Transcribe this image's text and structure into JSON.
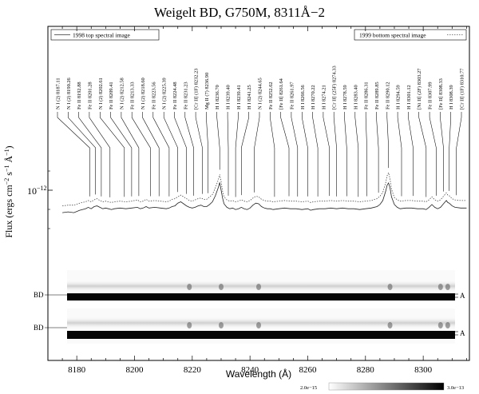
{
  "chart_data": {
    "type": "line",
    "title": "Weigelt BD, G750M, 8311Å−2",
    "xlabel": "Wavelength (Å)",
    "ylabel": "Flux (ergs cm",
    "ylabel_sup1": "−2",
    "ylabel_mid": " s",
    "ylabel_sup2": "−1",
    "ylabel_unit": " Å",
    "ylabel_sup3": "−1",
    "ylabel_close": ")",
    "xlim": [
      8170,
      8316
    ],
    "xticks": [
      "8180",
      "8200",
      "8220",
      "8240",
      "8260",
      "8280",
      "8300"
    ],
    "yscale": "log",
    "ytick_label_base": "10",
    "ytick_label_exp": "−12",
    "legend": [
      {
        "name": "1998 top spectral image",
        "style": "solid",
        "position": "top-left"
      },
      {
        "name": "1999 bottom spectral image",
        "style": "dotted",
        "position": "top-right"
      }
    ],
    "series": [
      {
        "name": "1998 top spectral image",
        "style": "solid",
        "x": [
          8175,
          8177,
          8179,
          8181,
          8183,
          8184,
          8185,
          8186,
          8187,
          8188,
          8189,
          8190,
          8191,
          8192,
          8193,
          8195,
          8197,
          8199,
          8201,
          8202,
          8203,
          8204,
          8205,
          8207,
          8209,
          8211,
          8212,
          8213,
          8214,
          8215,
          8216,
          8217,
          8218,
          8219,
          8220,
          8221,
          8222,
          8223,
          8224,
          8225,
          8226,
          8227,
          8228,
          8229,
          8229.5,
          8230,
          8230.5,
          8231,
          8232,
          8233,
          8234,
          8235,
          8236,
          8237,
          8238,
          8239,
          8240,
          8241,
          8242,
          8243,
          8244,
          8245,
          8246,
          8247,
          8248,
          8250,
          8252,
          8254,
          8256,
          8258,
          8260,
          8261,
          8262,
          8264,
          8266,
          8268,
          8270,
          8272,
          8274,
          8276,
          8278,
          8280,
          8282,
          8284,
          8285,
          8286,
          8287,
          8287.5,
          8288,
          8288.5,
          8289,
          8290,
          8291,
          8292,
          8294,
          8296,
          8298,
          8300,
          8301,
          8302,
          8303,
          8304,
          8305,
          8306,
          8307,
          8308,
          8308.5,
          8309,
          8310,
          8311,
          8313,
          8315
        ],
        "y": [
          0.65,
          0.66,
          0.65,
          0.68,
          0.7,
          0.72,
          0.7,
          0.73,
          0.74,
          0.72,
          0.7,
          0.71,
          0.7,
          0.69,
          0.7,
          0.71,
          0.7,
          0.71,
          0.72,
          0.7,
          0.71,
          0.73,
          0.71,
          0.72,
          0.71,
          0.7,
          0.71,
          0.73,
          0.74,
          0.78,
          0.8,
          0.77,
          0.74,
          0.72,
          0.71,
          0.72,
          0.74,
          0.75,
          0.73,
          0.73,
          0.76,
          0.8,
          0.9,
          1.05,
          1.16,
          1.0,
          0.86,
          0.77,
          0.72,
          0.7,
          0.71,
          0.69,
          0.7,
          0.72,
          0.7,
          0.69,
          0.71,
          0.75,
          0.78,
          0.77,
          0.73,
          0.71,
          0.7,
          0.7,
          0.69,
          0.7,
          0.71,
          0.7,
          0.7,
          0.69,
          0.7,
          0.68,
          0.69,
          0.7,
          0.7,
          0.71,
          0.7,
          0.71,
          0.7,
          0.7,
          0.69,
          0.7,
          0.71,
          0.73,
          0.76,
          0.82,
          0.98,
          1.1,
          1.15,
          1.05,
          0.88,
          0.76,
          0.72,
          0.7,
          0.71,
          0.71,
          0.7,
          0.7,
          0.69,
          0.72,
          0.76,
          0.72,
          0.7,
          0.72,
          0.77,
          0.82,
          0.79,
          0.78,
          0.74,
          0.72,
          0.71,
          0.71
        ]
      },
      {
        "name": "1999 bottom spectral image",
        "style": "dotted",
        "x": [
          8175,
          8177,
          8179,
          8181,
          8183,
          8184,
          8185,
          8186,
          8187,
          8188,
          8189,
          8190,
          8191,
          8192,
          8193,
          8195,
          8197,
          8199,
          8201,
          8202,
          8203,
          8204,
          8205,
          8207,
          8209,
          8211,
          8212,
          8213,
          8214,
          8215,
          8216,
          8217,
          8218,
          8219,
          8220,
          8221,
          8222,
          8223,
          8224,
          8225,
          8226,
          8227,
          8228,
          8229,
          8229.5,
          8230,
          8230.5,
          8231,
          8232,
          8233,
          8234,
          8235,
          8236,
          8237,
          8238,
          8239,
          8240,
          8241,
          8242,
          8243,
          8244,
          8245,
          8246,
          8247,
          8248,
          8250,
          8252,
          8254,
          8256,
          8258,
          8260,
          8261,
          8262,
          8264,
          8266,
          8268,
          8270,
          8272,
          8274,
          8276,
          8278,
          8280,
          8282,
          8284,
          8285,
          8286,
          8287,
          8287.5,
          8288,
          8288.5,
          8289,
          8290,
          8291,
          8292,
          8294,
          8296,
          8298,
          8300,
          8301,
          8302,
          8303,
          8304,
          8305,
          8306,
          8307,
          8308,
          8308.5,
          8309,
          8310,
          8311,
          8313,
          8315
        ],
        "y": [
          0.74,
          0.75,
          0.75,
          0.78,
          0.8,
          0.82,
          0.8,
          0.83,
          0.85,
          0.82,
          0.8,
          0.81,
          0.8,
          0.79,
          0.8,
          0.81,
          0.8,
          0.81,
          0.83,
          0.8,
          0.81,
          0.84,
          0.81,
          0.82,
          0.81,
          0.8,
          0.81,
          0.84,
          0.85,
          0.88,
          0.91,
          0.88,
          0.85,
          0.82,
          0.81,
          0.83,
          0.85,
          0.86,
          0.84,
          0.84,
          0.88,
          0.92,
          1.05,
          1.22,
          1.35,
          1.18,
          0.98,
          0.88,
          0.83,
          0.81,
          0.82,
          0.8,
          0.81,
          0.83,
          0.81,
          0.8,
          0.82,
          0.86,
          0.89,
          0.88,
          0.84,
          0.82,
          0.81,
          0.81,
          0.8,
          0.81,
          0.82,
          0.81,
          0.81,
          0.8,
          0.81,
          0.79,
          0.8,
          0.81,
          0.81,
          0.82,
          0.81,
          0.82,
          0.81,
          0.81,
          0.8,
          0.81,
          0.82,
          0.85,
          0.89,
          0.96,
          1.15,
          1.32,
          1.4,
          1.25,
          1.02,
          0.87,
          0.83,
          0.81,
          0.82,
          0.82,
          0.81,
          0.81,
          0.8,
          0.83,
          0.88,
          0.83,
          0.81,
          0.83,
          0.89,
          0.95,
          0.91,
          0.9,
          0.85,
          0.83,
          0.82,
          0.82
        ]
      }
    ],
    "line_ids": [
      {
        "label": "N I  (2) 8187.11",
        "x": 8184.5
      },
      {
        "label": "N I  (2) 8190.26",
        "x": 8186.5
      },
      {
        "label": "Fe II 8192.88",
        "x": 8188.5
      },
      {
        "label": "Fe II 8201.28",
        "x": 8191.5
      },
      {
        "label": "N I  (2) 8202.61",
        "x": 8196.5
      },
      {
        "label": "Fe II 8209.41",
        "x": 8199.0
      },
      {
        "label": "N I  (2) 8212.58",
        "x": 8201.5
      },
      {
        "label": "Fe II 8213.33",
        "x": 8205.5
      },
      {
        "label": "N I  (2) 8218.60",
        "x": 8208.5
      },
      {
        "label": "Fe II 8223.56",
        "x": 8212.0
      },
      {
        "label": "N I  (2) 8225.39",
        "x": 8215.0
      },
      {
        "label": "Fe II 8224.48",
        "x": 8218.0
      },
      {
        "label": "Fe II 8231.23",
        "x": 8220.5
      },
      {
        "label": "[Cr II]  (1F) 8232.23",
        "x": 8223.5
      },
      {
        "label": "Mg II (7) 8236.90",
        "x": 8225.5
      },
      {
        "label": "H I 8236.70",
        "x": 8229.5
      },
      {
        "label": "H I 8239.40",
        "x": 8232.5
      },
      {
        "label": "H I 8239.41",
        "x": 8235.0
      },
      {
        "label": "H I 8241.25",
        "x": 8237.0
      },
      {
        "label": "N I  (2) 8244.65",
        "x": 8241.5
      },
      {
        "label": "Fe II 8252.62",
        "x": 8248.5
      },
      {
        "label": "[Fe II] 8261.64",
        "x": 8253.5
      },
      {
        "label": "Fe II 8261.97",
        "x": 8256.5
      },
      {
        "label": "H I 8266.56",
        "x": 8260.0
      },
      {
        "label": "H I 8270.22",
        "x": 8263.5
      },
      {
        "label": "H I 8274.21",
        "x": 8267.5
      },
      {
        "label": "[Cr II]  (25F) 8274.33",
        "x": 8270.0
      },
      {
        "label": "H I 8278.59",
        "x": 8273.5
      },
      {
        "label": "H I 8283.40",
        "x": 8277.5
      },
      {
        "label": "Fe II 8286.31",
        "x": 8280.5
      },
      {
        "label": "Fe II 8289.85",
        "x": 8284.5
      },
      {
        "label": "Fe II 8290.12",
        "x": 8288.0
      },
      {
        "label": "H I 8294.59",
        "x": 8292.5
      },
      {
        "label": "H I 8301.12",
        "x": 8296.5
      },
      {
        "label": "[Ni II]  (2F) 8303.27",
        "x": 8301.0
      },
      {
        "label": "Fe II 8307.99",
        "x": 8304.5
      },
      {
        "label": "[Fe II] 8308.33",
        "x": 8307.0
      },
      {
        "label": "H I 8308.39",
        "x": 8309.0
      },
      {
        "label": "[Cr II]  (1F) 8310.77",
        "x": 8311.5
      }
    ],
    "spectral_image_labels": [
      {
        "left": "BD",
        "right": "A"
      },
      {
        "left": "BD",
        "right": "A"
      }
    ],
    "colorbar": {
      "min_label": "2.0e−15",
      "max_label": "3.0e−13"
    }
  }
}
